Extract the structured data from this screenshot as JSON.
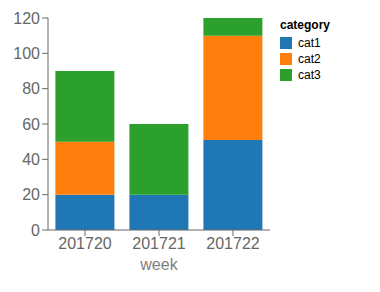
{
  "chart_data": {
    "type": "bar",
    "stacked": true,
    "xlabel": "week",
    "legend_title": "category",
    "legend": "upper right",
    "grid": false,
    "categories": [
      "201720",
      "201721",
      "201722"
    ],
    "series": [
      {
        "name": "cat1",
        "color": "#1f77b4",
        "values": [
          20,
          20,
          51
        ]
      },
      {
        "name": "cat2",
        "color": "#ff7f0e",
        "values": [
          30,
          0,
          59
        ]
      },
      {
        "name": "cat3",
        "color": "#2ca02c",
        "values": [
          40,
          40,
          10
        ]
      }
    ],
    "ylim": [
      0,
      120
    ],
    "yticks": [
      0,
      20,
      40,
      60,
      80,
      100,
      120
    ]
  }
}
